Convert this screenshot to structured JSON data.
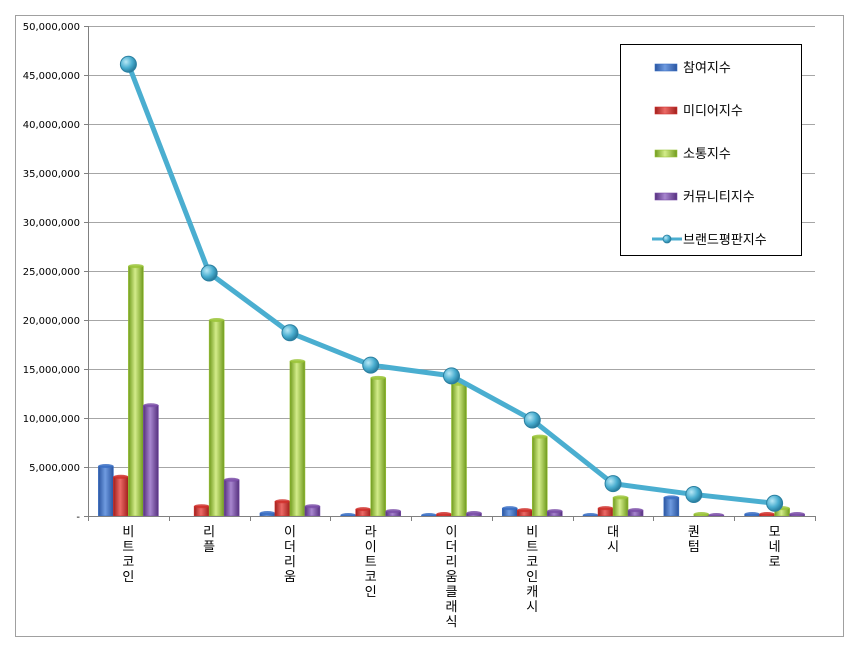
{
  "chart_data": {
    "type": "bar",
    "title": "",
    "xlabel": "",
    "ylabel": "",
    "ylim": [
      0,
      50000000
    ],
    "y_ticks": [
      "-",
      "5,000,000",
      "10,000,000",
      "15,000,000",
      "20,000,000",
      "25,000,000",
      "30,000,000",
      "35,000,000",
      "40,000,000",
      "45,000,000",
      "50,000,000"
    ],
    "grid": true,
    "legend_position": "top-right",
    "categories": [
      "비트코인",
      "리플",
      "이더리움",
      "라이트코인",
      "이더리움클래식",
      "비트코인캐시",
      "대시",
      "퀀텀",
      "모네로"
    ],
    "series": [
      {
        "name": "참여지수",
        "type": "bar",
        "color": "#3a6fc4",
        "values": [
          5100000,
          0,
          300000,
          100000,
          100000,
          800000,
          100000,
          1900000,
          200000
        ]
      },
      {
        "name": "미디어지수",
        "type": "bar",
        "color": "#d0312d",
        "values": [
          4000000,
          1000000,
          1500000,
          700000,
          200000,
          600000,
          800000,
          0,
          200000
        ]
      },
      {
        "name": "소통지수",
        "type": "bar",
        "color": "#9bc43a",
        "values": [
          25500000,
          20000000,
          15800000,
          14100000,
          13500000,
          8100000,
          1900000,
          200000,
          800000
        ]
      },
      {
        "name": "커뮤니티지수",
        "type": "bar",
        "color": "#7b4fa8",
        "values": [
          11300000,
          3700000,
          1000000,
          500000,
          300000,
          500000,
          600000,
          100000,
          200000
        ]
      },
      {
        "name": "브랜드평판지수",
        "type": "line",
        "color": "#4aaed0",
        "values": [
          46100000,
          24800000,
          18700000,
          15400000,
          14300000,
          9800000,
          3300000,
          2200000,
          1300000
        ]
      }
    ]
  }
}
